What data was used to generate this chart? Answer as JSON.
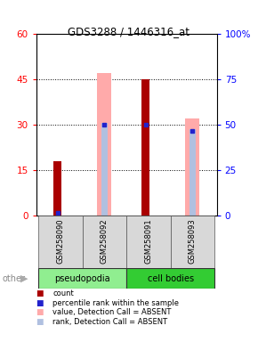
{
  "title": "GDS3288 / 1446316_at",
  "samples": [
    "GSM258090",
    "GSM258092",
    "GSM258091",
    "GSM258093"
  ],
  "ylim_left": [
    0,
    60
  ],
  "ylim_right": [
    0,
    100
  ],
  "yticks_left": [
    0,
    15,
    30,
    45,
    60
  ],
  "ytick_labels_left": [
    "0",
    "15",
    "30",
    "45",
    "60"
  ],
  "yticks_right": [
    0,
    25,
    50,
    75,
    100
  ],
  "ytick_labels_right": [
    "0",
    "25",
    "50",
    "75",
    "100%"
  ],
  "count_values": [
    18,
    0,
    45,
    0
  ],
  "rank_values": [
    1,
    30,
    30,
    28
  ],
  "absent_value_bars": [
    0,
    47,
    0,
    32
  ],
  "absent_rank_bars": [
    0,
    30.5,
    0,
    28.5
  ],
  "count_color": "#aa0000",
  "rank_color": "#2222cc",
  "absent_value_color": "#ffaaaa",
  "absent_rank_color": "#b0c0e0",
  "legend_items": [
    {
      "label": "count",
      "color": "#aa0000"
    },
    {
      "label": "percentile rank within the sample",
      "color": "#2222cc"
    },
    {
      "label": "value, Detection Call = ABSENT",
      "color": "#ffaaaa"
    },
    {
      "label": "rank, Detection Call = ABSENT",
      "color": "#b0c0e0"
    }
  ]
}
